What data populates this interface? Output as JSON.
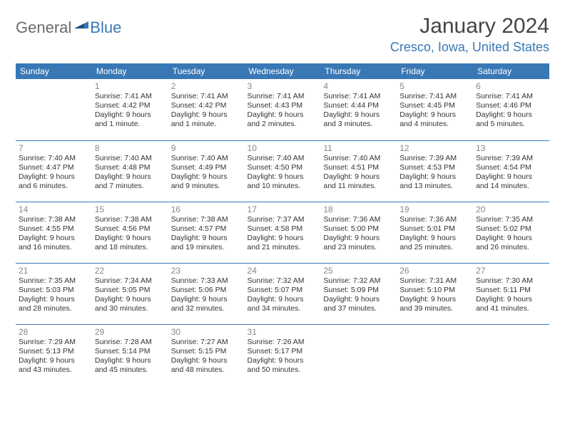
{
  "logo": {
    "general": "General",
    "blue": "Blue"
  },
  "title": "January 2024",
  "location": "Cresco, Iowa, United States",
  "colors": {
    "header_bg": "#3a78b5",
    "header_text": "#ffffff",
    "accent": "#3a78b5",
    "logo_gray": "#6a6a6a",
    "body_text": "#333333",
    "muted": "#888888",
    "page_bg": "#ffffff"
  },
  "weekdays": [
    "Sunday",
    "Monday",
    "Tuesday",
    "Wednesday",
    "Thursday",
    "Friday",
    "Saturday"
  ],
  "weeks": [
    [
      null,
      {
        "n": "1",
        "sr": "Sunrise: 7:41 AM",
        "ss": "Sunset: 4:42 PM",
        "d1": "Daylight: 9 hours",
        "d2": "and 1 minute."
      },
      {
        "n": "2",
        "sr": "Sunrise: 7:41 AM",
        "ss": "Sunset: 4:42 PM",
        "d1": "Daylight: 9 hours",
        "d2": "and 1 minute."
      },
      {
        "n": "3",
        "sr": "Sunrise: 7:41 AM",
        "ss": "Sunset: 4:43 PM",
        "d1": "Daylight: 9 hours",
        "d2": "and 2 minutes."
      },
      {
        "n": "4",
        "sr": "Sunrise: 7:41 AM",
        "ss": "Sunset: 4:44 PM",
        "d1": "Daylight: 9 hours",
        "d2": "and 3 minutes."
      },
      {
        "n": "5",
        "sr": "Sunrise: 7:41 AM",
        "ss": "Sunset: 4:45 PM",
        "d1": "Daylight: 9 hours",
        "d2": "and 4 minutes."
      },
      {
        "n": "6",
        "sr": "Sunrise: 7:41 AM",
        "ss": "Sunset: 4:46 PM",
        "d1": "Daylight: 9 hours",
        "d2": "and 5 minutes."
      }
    ],
    [
      {
        "n": "7",
        "sr": "Sunrise: 7:40 AM",
        "ss": "Sunset: 4:47 PM",
        "d1": "Daylight: 9 hours",
        "d2": "and 6 minutes."
      },
      {
        "n": "8",
        "sr": "Sunrise: 7:40 AM",
        "ss": "Sunset: 4:48 PM",
        "d1": "Daylight: 9 hours",
        "d2": "and 7 minutes."
      },
      {
        "n": "9",
        "sr": "Sunrise: 7:40 AM",
        "ss": "Sunset: 4:49 PM",
        "d1": "Daylight: 9 hours",
        "d2": "and 9 minutes."
      },
      {
        "n": "10",
        "sr": "Sunrise: 7:40 AM",
        "ss": "Sunset: 4:50 PM",
        "d1": "Daylight: 9 hours",
        "d2": "and 10 minutes."
      },
      {
        "n": "11",
        "sr": "Sunrise: 7:40 AM",
        "ss": "Sunset: 4:51 PM",
        "d1": "Daylight: 9 hours",
        "d2": "and 11 minutes."
      },
      {
        "n": "12",
        "sr": "Sunrise: 7:39 AM",
        "ss": "Sunset: 4:53 PM",
        "d1": "Daylight: 9 hours",
        "d2": "and 13 minutes."
      },
      {
        "n": "13",
        "sr": "Sunrise: 7:39 AM",
        "ss": "Sunset: 4:54 PM",
        "d1": "Daylight: 9 hours",
        "d2": "and 14 minutes."
      }
    ],
    [
      {
        "n": "14",
        "sr": "Sunrise: 7:38 AM",
        "ss": "Sunset: 4:55 PM",
        "d1": "Daylight: 9 hours",
        "d2": "and 16 minutes."
      },
      {
        "n": "15",
        "sr": "Sunrise: 7:38 AM",
        "ss": "Sunset: 4:56 PM",
        "d1": "Daylight: 9 hours",
        "d2": "and 18 minutes."
      },
      {
        "n": "16",
        "sr": "Sunrise: 7:38 AM",
        "ss": "Sunset: 4:57 PM",
        "d1": "Daylight: 9 hours",
        "d2": "and 19 minutes."
      },
      {
        "n": "17",
        "sr": "Sunrise: 7:37 AM",
        "ss": "Sunset: 4:58 PM",
        "d1": "Daylight: 9 hours",
        "d2": "and 21 minutes."
      },
      {
        "n": "18",
        "sr": "Sunrise: 7:36 AM",
        "ss": "Sunset: 5:00 PM",
        "d1": "Daylight: 9 hours",
        "d2": "and 23 minutes."
      },
      {
        "n": "19",
        "sr": "Sunrise: 7:36 AM",
        "ss": "Sunset: 5:01 PM",
        "d1": "Daylight: 9 hours",
        "d2": "and 25 minutes."
      },
      {
        "n": "20",
        "sr": "Sunrise: 7:35 AM",
        "ss": "Sunset: 5:02 PM",
        "d1": "Daylight: 9 hours",
        "d2": "and 26 minutes."
      }
    ],
    [
      {
        "n": "21",
        "sr": "Sunrise: 7:35 AM",
        "ss": "Sunset: 5:03 PM",
        "d1": "Daylight: 9 hours",
        "d2": "and 28 minutes."
      },
      {
        "n": "22",
        "sr": "Sunrise: 7:34 AM",
        "ss": "Sunset: 5:05 PM",
        "d1": "Daylight: 9 hours",
        "d2": "and 30 minutes."
      },
      {
        "n": "23",
        "sr": "Sunrise: 7:33 AM",
        "ss": "Sunset: 5:06 PM",
        "d1": "Daylight: 9 hours",
        "d2": "and 32 minutes."
      },
      {
        "n": "24",
        "sr": "Sunrise: 7:32 AM",
        "ss": "Sunset: 5:07 PM",
        "d1": "Daylight: 9 hours",
        "d2": "and 34 minutes."
      },
      {
        "n": "25",
        "sr": "Sunrise: 7:32 AM",
        "ss": "Sunset: 5:09 PM",
        "d1": "Daylight: 9 hours",
        "d2": "and 37 minutes."
      },
      {
        "n": "26",
        "sr": "Sunrise: 7:31 AM",
        "ss": "Sunset: 5:10 PM",
        "d1": "Daylight: 9 hours",
        "d2": "and 39 minutes."
      },
      {
        "n": "27",
        "sr": "Sunrise: 7:30 AM",
        "ss": "Sunset: 5:11 PM",
        "d1": "Daylight: 9 hours",
        "d2": "and 41 minutes."
      }
    ],
    [
      {
        "n": "28",
        "sr": "Sunrise: 7:29 AM",
        "ss": "Sunset: 5:13 PM",
        "d1": "Daylight: 9 hours",
        "d2": "and 43 minutes."
      },
      {
        "n": "29",
        "sr": "Sunrise: 7:28 AM",
        "ss": "Sunset: 5:14 PM",
        "d1": "Daylight: 9 hours",
        "d2": "and 45 minutes."
      },
      {
        "n": "30",
        "sr": "Sunrise: 7:27 AM",
        "ss": "Sunset: 5:15 PM",
        "d1": "Daylight: 9 hours",
        "d2": "and 48 minutes."
      },
      {
        "n": "31",
        "sr": "Sunrise: 7:26 AM",
        "ss": "Sunset: 5:17 PM",
        "d1": "Daylight: 9 hours",
        "d2": "and 50 minutes."
      },
      null,
      null,
      null
    ]
  ]
}
